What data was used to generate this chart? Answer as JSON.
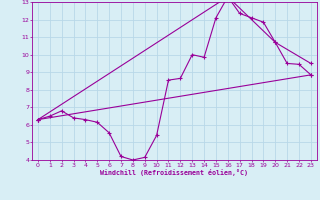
{
  "bg_color": "#d8eef5",
  "line_color": "#990099",
  "grid_color": "#b8d8e8",
  "xlabel": "Windchill (Refroidissement éolien,°C)",
  "xlim": [
    -0.5,
    23.5
  ],
  "ylim": [
    4,
    13
  ],
  "yticks": [
    4,
    5,
    6,
    7,
    8,
    9,
    10,
    11,
    12,
    13
  ],
  "xticks": [
    0,
    1,
    2,
    3,
    4,
    5,
    6,
    7,
    8,
    9,
    10,
    11,
    12,
    13,
    14,
    15,
    16,
    17,
    18,
    19,
    20,
    21,
    22,
    23
  ],
  "line1_x": [
    0,
    1,
    2,
    3,
    4,
    5,
    6,
    7,
    8,
    9,
    10,
    11,
    12,
    13,
    14,
    15,
    16,
    17,
    18,
    19,
    20,
    21,
    22,
    23
  ],
  "line1_y": [
    6.3,
    6.5,
    6.8,
    6.4,
    6.3,
    6.15,
    5.55,
    4.2,
    4.0,
    4.15,
    5.4,
    8.55,
    8.65,
    10.0,
    9.85,
    12.1,
    13.3,
    12.35,
    12.1,
    11.85,
    10.7,
    9.5,
    9.45,
    8.85
  ],
  "line2_x": [
    0,
    23
  ],
  "line2_y": [
    6.3,
    8.85
  ],
  "line3_x": [
    0,
    16,
    20,
    23
  ],
  "line3_y": [
    6.3,
    13.3,
    10.7,
    9.5
  ]
}
